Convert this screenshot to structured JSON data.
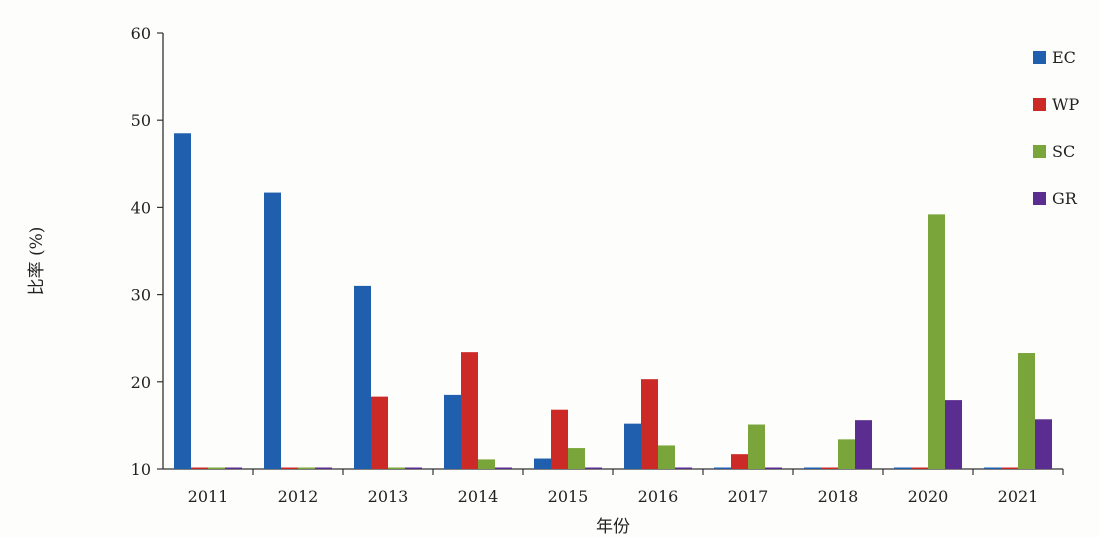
{
  "chart_data": {
    "type": "bar",
    "title": "",
    "xlabel": "年份",
    "ylabel": "比率 (%)",
    "ylim": [
      10,
      60
    ],
    "yticks": [
      10,
      20,
      30,
      40,
      50,
      60
    ],
    "categories": [
      "2011",
      "2012",
      "2013",
      "2014",
      "2015",
      "2016",
      "2017",
      "2018",
      "2020",
      "2021"
    ],
    "series": [
      {
        "name": "EC",
        "color": "#1f5fae",
        "values": [
          48.5,
          41.7,
          31.0,
          18.5,
          11.2,
          15.2,
          10.0,
          10.0,
          10.0,
          10.0
        ]
      },
      {
        "name": "WP",
        "color": "#cc2a27",
        "values": [
          10.0,
          10.0,
          18.3,
          23.4,
          16.8,
          20.3,
          11.7,
          10.0,
          10.0,
          10.0
        ]
      },
      {
        "name": "SC",
        "color": "#7aa53a",
        "values": [
          10.0,
          10.0,
          10.0,
          11.1,
          12.4,
          12.7,
          15.1,
          13.4,
          39.2,
          23.3
        ]
      },
      {
        "name": "GR",
        "color": "#5c2d91",
        "values": [
          10.0,
          10.0,
          10.0,
          10.0,
          10.0,
          10.0,
          10.0,
          15.6,
          17.9,
          15.7
        ]
      }
    ],
    "legend": "right",
    "grid": false
  }
}
